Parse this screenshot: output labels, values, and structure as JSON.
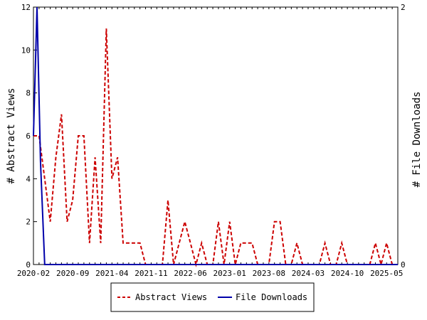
{
  "chart_data": {
    "type": "line",
    "x_label_ticks": [
      "2020-02",
      "2020-09",
      "2021-04",
      "2021-11",
      "2022-06",
      "2023-01",
      "2023-08",
      "2024-03",
      "2024-10",
      "2025-05"
    ],
    "ylabel_left": "# Abstract Views",
    "ylabel_right": "# File Downloads",
    "ylim_left": [
      0,
      12
    ],
    "ylim_right": [
      0,
      2
    ],
    "yticks_left": [
      0,
      2,
      4,
      6,
      8,
      10,
      12
    ],
    "yticks_right": [
      0,
      2
    ],
    "x_months": [
      "2020-02",
      "2020-03",
      "2020-04",
      "2020-05",
      "2020-06",
      "2020-07",
      "2020-08",
      "2020-09",
      "2020-10",
      "2020-11",
      "2020-12",
      "2021-01",
      "2021-02",
      "2021-03",
      "2021-04",
      "2021-05",
      "2021-06",
      "2021-07",
      "2021-08",
      "2021-09",
      "2021-10",
      "2021-11",
      "2021-12",
      "2022-01",
      "2022-02",
      "2022-03",
      "2022-04",
      "2022-05",
      "2022-06",
      "2022-07",
      "2022-08",
      "2022-09",
      "2022-10",
      "2022-11",
      "2022-12",
      "2023-01",
      "2023-02",
      "2023-03",
      "2023-04",
      "2023-05",
      "2023-06",
      "2023-07",
      "2023-08",
      "2023-09",
      "2023-10",
      "2023-11",
      "2023-12",
      "2024-01",
      "2024-02",
      "2024-03",
      "2024-04",
      "2024-05",
      "2024-06",
      "2024-07",
      "2024-08",
      "2024-09",
      "2024-10",
      "2024-11",
      "2024-12",
      "2025-01",
      "2025-02",
      "2025-03",
      "2025-04",
      "2025-05",
      "2025-06",
      "2025-07"
    ],
    "series": [
      {
        "name": "Abstract Views",
        "axis": "left",
        "color": "#cc0000",
        "dash": true,
        "values": [
          6,
          6,
          4,
          2,
          5,
          7,
          2,
          3,
          6,
          6,
          1,
          5,
          1,
          11,
          4,
          5,
          1,
          1,
          1,
          1,
          0,
          0,
          0,
          0,
          3,
          0,
          1,
          2,
          1,
          0,
          1,
          0,
          0,
          2,
          0,
          2,
          0,
          1,
          1,
          1,
          0,
          0,
          0,
          2,
          2,
          0,
          0,
          1,
          0,
          0,
          0,
          0,
          1,
          0,
          0,
          1,
          0,
          0,
          0,
          0,
          0,
          1,
          0,
          1,
          0,
          0
        ]
      },
      {
        "name": "File Downloads",
        "axis": "right",
        "color": "#0000aa",
        "dash": false,
        "points": [
          [
            "2020-02",
            1
          ],
          [
            "2020-02",
            2
          ],
          [
            "2020-03",
            0.8
          ],
          [
            "2020-04",
            0
          ],
          [
            "2025-07",
            0
          ]
        ]
      }
    ],
    "grid": false,
    "legend_placement": "bottom"
  }
}
